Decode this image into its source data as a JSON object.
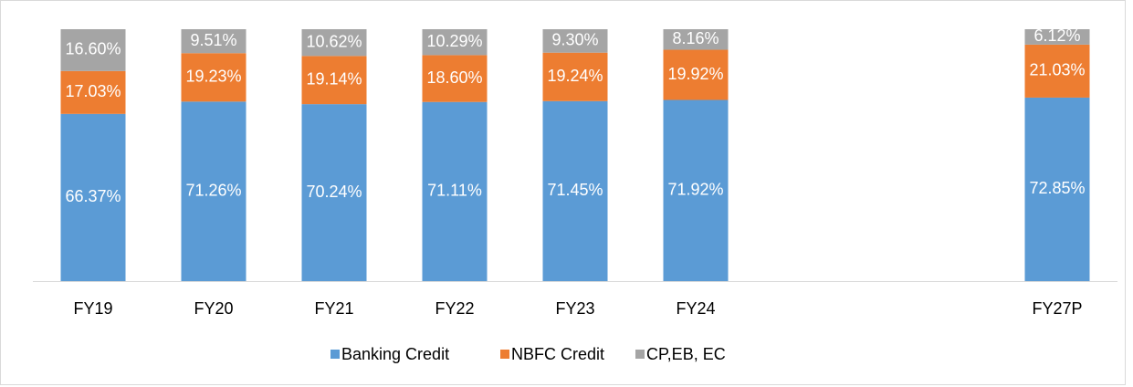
{
  "chart_data": {
    "type": "stacked_bar",
    "categories": [
      "FY19",
      "FY20",
      "FY21",
      "FY22",
      "FY23",
      "FY24",
      null,
      null,
      "FY27P"
    ],
    "series": [
      {
        "name": "Banking Credit",
        "color": "#5b9bd5",
        "values": [
          66.37,
          71.26,
          70.24,
          71.11,
          71.45,
          71.92,
          null,
          null,
          72.85
        ],
        "value_labels": [
          "66.37%",
          "71.26%",
          "70.24%",
          "71.11%",
          "71.45%",
          "71.92%",
          null,
          null,
          "72.85%"
        ]
      },
      {
        "name": "NBFC Credit",
        "color": "#ed7d31",
        "values": [
          17.03,
          19.23,
          19.14,
          18.6,
          19.24,
          19.92,
          null,
          null,
          21.03
        ],
        "value_labels": [
          "17.03%",
          "19.23%",
          "19.14%",
          "18.60%",
          "19.24%",
          "19.92%",
          null,
          null,
          "21.03%"
        ]
      },
      {
        "name": "CP,EB, EC",
        "color": "#a5a5a5",
        "values": [
          16.6,
          9.51,
          10.62,
          10.29,
          9.3,
          8.16,
          null,
          null,
          6.12
        ],
        "value_labels": [
          "16.60%",
          "9.51%",
          "10.62%",
          "10.29%",
          "9.30%",
          "8.16%",
          null,
          null,
          "6.12%"
        ]
      }
    ],
    "ylim": [
      0,
      100
    ],
    "legend": "bottom"
  }
}
